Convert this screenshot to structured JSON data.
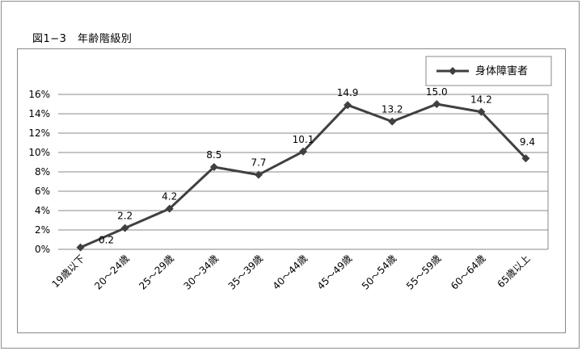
{
  "caption": "図1−3　年齢階級別",
  "chart_data": {
    "type": "line",
    "categories": [
      "19歳以下",
      "20～24歳",
      "25～29歳",
      "30～34歳",
      "35～39歳",
      "40～44歳",
      "45～49歳",
      "50～54歳",
      "55～59歳",
      "60～64歳",
      "65歳以上"
    ],
    "series": [
      {
        "name": "身体障害者",
        "values": [
          0.2,
          2.2,
          4.2,
          8.5,
          7.7,
          10.1,
          14.9,
          13.2,
          15.0,
          14.2,
          9.4
        ],
        "labels": [
          "0.2",
          "2.2",
          "4.2",
          "8.5",
          "7.7",
          "10.1",
          "14.9",
          "13.2",
          "15.0",
          "14.2",
          "9.4"
        ],
        "color": "#404040"
      }
    ],
    "ylim": [
      0,
      16
    ],
    "yticks": [
      "0%",
      "2%",
      "4%",
      "6%",
      "8%",
      "10%",
      "12%",
      "14%",
      "16%"
    ],
    "grid": true,
    "legend": "top-right",
    "marker": "diamond"
  }
}
